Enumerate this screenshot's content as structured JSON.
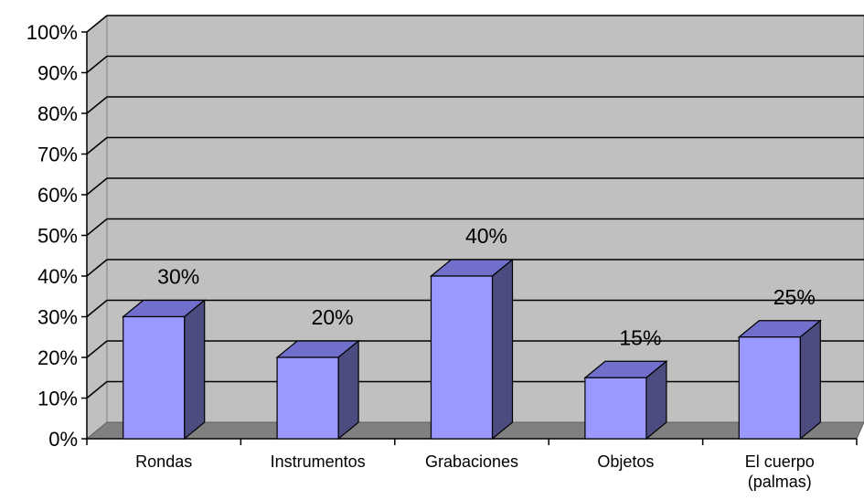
{
  "chart_data": {
    "type": "bar",
    "categories": [
      [
        "Rondas"
      ],
      [
        "Instrumentos"
      ],
      [
        "Grabaciones"
      ],
      [
        "Objetos"
      ],
      [
        "El cuerpo",
        "(palmas)"
      ]
    ],
    "values": [
      30,
      20,
      40,
      15,
      25
    ],
    "data_labels": [
      "30%",
      "20%",
      "40%",
      "15%",
      "25%"
    ],
    "y_ticks": [
      "0%",
      "10%",
      "20%",
      "30%",
      "40%",
      "50%",
      "60%",
      "70%",
      "80%",
      "90%",
      "100%"
    ],
    "ylim": [
      0,
      100
    ],
    "grid": true,
    "legend": "none",
    "three_d": true,
    "colors": {
      "bar_front": "#9999ff",
      "bar_side": "#4c4c80",
      "bar_top": "#7070cc",
      "wall": "#c0c0c0",
      "floor": "#808080",
      "grid": "#000000"
    }
  }
}
